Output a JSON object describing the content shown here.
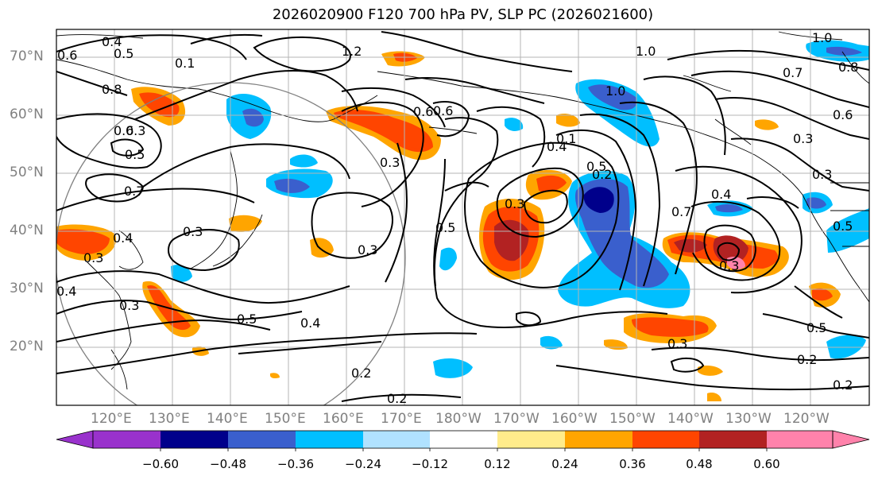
{
  "title": "2026020900 F120 700 hPa PV, SLP PC (2026021600)",
  "map": {
    "lat_labels": [
      "70°N",
      "60°N",
      "50°N",
      "40°N",
      "30°N",
      "20°N"
    ],
    "lon_labels": [
      "120°E",
      "130°E",
      "140°E",
      "150°E",
      "160°E",
      "170°E",
      "180°W",
      "170°W",
      "160°W",
      "150°W",
      "140°W",
      "130°W",
      "120°W"
    ],
    "contour_labels": [
      "0.4",
      "0.5",
      "0.6",
      "0.8",
      "0.6",
      "0.5",
      "0.7",
      "0.3",
      "0.3",
      "0.3",
      "0.4",
      "0.3",
      "0.5",
      "0.4",
      "0.2",
      "0.2",
      "0.3",
      "0.5",
      "0.6",
      "1.2",
      "1.0",
      "1.0",
      "0.4",
      "0.5",
      "0.3",
      "0.3",
      "0.5",
      "0.7",
      "0.4",
      "0.3",
      "0.3",
      "0.5",
      "0.2",
      "0.2",
      "1.0",
      "0.7",
      "0.8",
      "0.6",
      "0.3",
      "0.4",
      "0.1",
      "0.6",
      "0.1",
      "0.2",
      "0.3"
    ]
  },
  "colorbar": {
    "ticks": [
      "−0.60",
      "−0.48",
      "−0.36",
      "−0.24",
      "−0.12",
      "0.12",
      "0.24",
      "0.36",
      "0.48",
      "0.60"
    ],
    "colors": [
      "#9932cc",
      "#00008b",
      "#3a5fcd",
      "#00bfff",
      "#b0e2ff",
      "#ffffff",
      "#ffec8b",
      "#ffa500",
      "#ff4500",
      "#b22222",
      "#ff82ab"
    ]
  }
}
